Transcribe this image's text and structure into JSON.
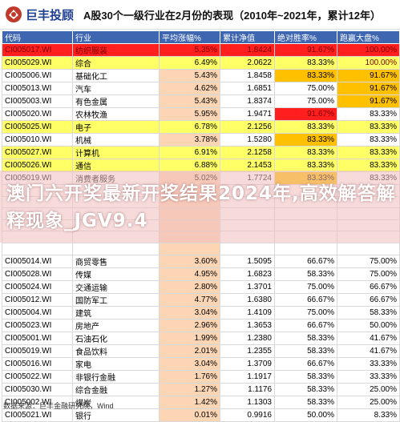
{
  "header": {
    "logo_text": "巨丰投顾",
    "title": "A股30个一级行业在2月份的表现（2010年~2021年，累计12年）"
  },
  "table": {
    "columns": [
      "代码",
      "行业",
      "平均涨幅%",
      "累计净值",
      "绝对胜率%",
      "跑赢大盘%"
    ],
    "rows": [
      {
        "code": "CI005017.WI",
        "name": "纺织服装",
        "avg": "5.35%",
        "nav": "1.8424",
        "win": "91.67%",
        "beat": "100.00%",
        "hl": "red",
        "win_hl": "red",
        "beat_hl": "red"
      },
      {
        "code": "CI005029.WI",
        "name": "综合",
        "avg": "6.49%",
        "nav": "2.0622",
        "win": "83.33%",
        "beat": "100.00%",
        "hl": "yel",
        "win_hl": "",
        "beat_hl": "red"
      },
      {
        "code": "CI005006.WI",
        "name": "基础化工",
        "avg": "5.43%",
        "nav": "1.8458",
        "win": "83.33%",
        "beat": "91.67%",
        "hl": "",
        "win_hl": "orange",
        "beat_hl": "orange"
      },
      {
        "code": "CI005013.WI",
        "name": "汽车",
        "avg": "4.62%",
        "nav": "1.6851",
        "win": "75.00%",
        "beat": "91.67%",
        "hl": "",
        "win_hl": "",
        "beat_hl": "orange"
      },
      {
        "code": "CI005003.WI",
        "name": "有色金属",
        "avg": "5.43%",
        "nav": "1.8374",
        "win": "75.00%",
        "beat": "91.67%",
        "hl": "",
        "win_hl": "",
        "beat_hl": "orange"
      },
      {
        "code": "CI005020.WI",
        "name": "农林牧渔",
        "avg": "5.95%",
        "nav": "1.9471",
        "win": "91.67%",
        "beat": "83.33%",
        "hl": "",
        "win_hl": "red",
        "beat_hl": ""
      },
      {
        "code": "CI005025.WI",
        "name": "电子",
        "avg": "6.78%",
        "nav": "2.1256",
        "win": "83.33%",
        "beat": "83.33%",
        "hl": "yel",
        "win_hl": "orange",
        "beat_hl": ""
      },
      {
        "code": "CI005010.WI",
        "name": "机械",
        "avg": "3.78%",
        "nav": "1.5280",
        "win": "83.33%",
        "beat": "83.33%",
        "hl": "",
        "win_hl": "orange",
        "beat_hl": ""
      },
      {
        "code": "CI005027.WI",
        "name": "计算机",
        "avg": "6.91%",
        "nav": "2.1258",
        "win": "83.33%",
        "beat": "83.33%",
        "hl": "yel",
        "win_hl": "orange",
        "beat_hl": ""
      },
      {
        "code": "CI005026.WI",
        "name": "通信",
        "avg": "6.88%",
        "nav": "2.1453",
        "win": "83.33%",
        "beat": "83.33%",
        "hl": "yel",
        "win_hl": "orange",
        "beat_hl": ""
      },
      {
        "code": "CI005019.WI",
        "name": "消费者服务",
        "avg": "5.02%",
        "nav": "1.7724",
        "win": "83.33%",
        "beat": "83.33%",
        "hl": "",
        "win_hl": "orange",
        "beat_hl": ""
      },
      {
        "code": "",
        "name": "",
        "avg": "",
        "nav": "",
        "win": "",
        "beat": "",
        "hl": "",
        "win_hl": "",
        "beat_hl": ""
      },
      {
        "code": "",
        "name": "",
        "avg": "",
        "nav": "",
        "win": "",
        "beat": "",
        "hl": "",
        "win_hl": "",
        "beat_hl": ""
      },
      {
        "code": "",
        "name": "",
        "avg": "",
        "nav": "",
        "win": "",
        "beat": "",
        "hl": "",
        "win_hl": "",
        "beat_hl": ""
      },
      {
        "code": "",
        "name": "",
        "avg": "",
        "nav": "",
        "win": "",
        "beat": "",
        "hl": "",
        "win_hl": "",
        "beat_hl": ""
      },
      {
        "code": "",
        "name": "",
        "avg": "",
        "nav": "",
        "win": "",
        "beat": "",
        "hl": "",
        "win_hl": "",
        "beat_hl": ""
      },
      {
        "code": "",
        "name": "",
        "avg": "",
        "nav": "",
        "win": "",
        "beat": "",
        "hl": "",
        "win_hl": "",
        "beat_hl": ""
      },
      {
        "code": "CI005014.WI",
        "name": "商贸零售",
        "avg": "3.60%",
        "nav": "1.5095",
        "win": "66.67%",
        "beat": "75.00%",
        "hl": "",
        "win_hl": "",
        "beat_hl": ""
      },
      {
        "code": "CI005028.WI",
        "name": "传媒",
        "avg": "4.95%",
        "nav": "1.6823",
        "win": "58.33%",
        "beat": "75.00%",
        "hl": "",
        "win_hl": "",
        "beat_hl": ""
      },
      {
        "code": "CI005024.WI",
        "name": "交通运输",
        "avg": "2.80%",
        "nav": "1.3701",
        "win": "75.00%",
        "beat": "66.67%",
        "hl": "",
        "win_hl": "",
        "beat_hl": ""
      },
      {
        "code": "CI005012.WI",
        "name": "国防军工",
        "avg": "4.77%",
        "nav": "1.6380",
        "win": "66.67%",
        "beat": "66.67%",
        "hl": "",
        "win_hl": "",
        "beat_hl": ""
      },
      {
        "code": "CI005004.WI",
        "name": "建筑",
        "avg": "3.04%",
        "nav": "1.4109",
        "win": "75.00%",
        "beat": "58.33%",
        "hl": "",
        "win_hl": "",
        "beat_hl": ""
      },
      {
        "code": "CI005023.WI",
        "name": "房地产",
        "avg": "2.96%",
        "nav": "1.3653",
        "win": "66.67%",
        "beat": "50.00%",
        "hl": "",
        "win_hl": "",
        "beat_hl": ""
      },
      {
        "code": "CI005001.WI",
        "name": "石油石化",
        "avg": "1.99%",
        "nav": "1.2380",
        "win": "58.33%",
        "beat": "41.67%",
        "hl": "",
        "win_hl": "",
        "beat_hl": ""
      },
      {
        "code": "CI005019.WI",
        "name": "食品饮料",
        "avg": "2.01%",
        "nav": "1.2355",
        "win": "58.33%",
        "beat": "41.67%",
        "hl": "",
        "win_hl": "",
        "beat_hl": ""
      },
      {
        "code": "CI005016.WI",
        "name": "家电",
        "avg": "3.04%",
        "nav": "1.3709",
        "win": "66.67%",
        "beat": "33.33%",
        "hl": "",
        "win_hl": "",
        "beat_hl": ""
      },
      {
        "code": "CI005022.WI",
        "name": "非银行金融",
        "avg": "1.76%",
        "nav": "1.1917",
        "win": "58.33%",
        "beat": "33.33%",
        "hl": "",
        "win_hl": "",
        "beat_hl": ""
      },
      {
        "code": "CI005030.WI",
        "name": "综合金融",
        "avg": "1.27%",
        "nav": "1.1176",
        "win": "58.33%",
        "beat": "25.00%",
        "hl": "",
        "win_hl": "",
        "beat_hl": ""
      },
      {
        "code": "CI005002.WI",
        "name": "煤炭",
        "avg": "1.42%",
        "nav": "1.1303",
        "win": "58.33%",
        "beat": "25.00%",
        "hl": "",
        "win_hl": "",
        "beat_hl": ""
      },
      {
        "code": "CI005021.WI",
        "name": "银行",
        "avg": "0.01%",
        "nav": "0.9916",
        "win": "50.00%",
        "beat": "8.33%",
        "hl": "",
        "win_hl": "",
        "beat_hl": ""
      }
    ]
  },
  "overlay": {
    "text": "澳门六开奖最新开奖结果2024年,高效解答解释现象_JGV9.4"
  },
  "source": "数据来源：巨丰金融研究院，Wind",
  "colors": {
    "header_bg": "#3f66b1",
    "red": "#ff1f1f",
    "yellow": "#ffff66",
    "orange": "#ffc000"
  }
}
